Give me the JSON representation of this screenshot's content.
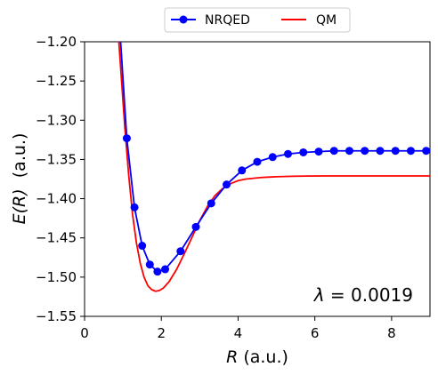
{
  "chart_data": {
    "type": "line",
    "xlabel_var": "R",
    "xlabel_unit": " (a.u.)",
    "ylabel_var": "E(R)",
    "ylabel_unit": "  (a.u.)",
    "xlim": [
      0,
      9
    ],
    "ylim": [
      -1.55,
      -1.2
    ],
    "xticks": [
      0,
      2,
      4,
      6,
      8
    ],
    "xtick_labels": [
      "0",
      "2",
      "4",
      "6",
      "8"
    ],
    "yticks": [
      -1.55,
      -1.5,
      -1.45,
      -1.4,
      -1.35,
      -1.3,
      -1.25,
      -1.2
    ],
    "ytick_labels": [
      "−1.55",
      "−1.50",
      "−1.45",
      "−1.40",
      "−1.35",
      "−1.30",
      "−1.25",
      "−1.20"
    ],
    "legend_placement": "top-center, outside plot",
    "annotation": {
      "lambda_symbol": "λ",
      "text": " = 0.0019",
      "position": "bottom-right"
    },
    "series": [
      {
        "name": "NRQED",
        "color": "#0000ff",
        "marker": "circle",
        "x": [
          0.9,
          1.1,
          1.3,
          1.5,
          1.7,
          1.9,
          2.1,
          2.5,
          2.9,
          3.3,
          3.7,
          4.1,
          4.5,
          4.9,
          5.3,
          5.7,
          6.1,
          6.5,
          6.9,
          7.3,
          7.7,
          8.1,
          8.5,
          8.9
        ],
        "y": [
          -1.17,
          -1.323,
          -1.411,
          -1.46,
          -1.484,
          -1.493,
          -1.49,
          -1.467,
          -1.436,
          -1.406,
          -1.382,
          -1.364,
          -1.353,
          -1.347,
          -1.343,
          -1.341,
          -1.34,
          -1.339,
          -1.339,
          -1.339,
          -1.339,
          -1.339,
          -1.339,
          -1.339
        ],
        "marker_x": [
          1.1,
          1.3,
          1.5,
          1.7,
          1.9,
          2.1,
          2.5,
          2.9,
          3.3,
          3.7,
          4.1,
          4.5,
          4.9,
          5.3,
          5.7,
          6.1,
          6.5,
          6.9,
          7.3,
          7.7,
          8.1,
          8.5,
          8.9
        ],
        "marker_y": [
          -1.323,
          -1.411,
          -1.46,
          -1.484,
          -1.493,
          -1.49,
          -1.467,
          -1.436,
          -1.406,
          -1.382,
          -1.364,
          -1.353,
          -1.347,
          -1.343,
          -1.341,
          -1.34,
          -1.339,
          -1.339,
          -1.339,
          -1.339,
          -1.339,
          -1.339,
          -1.339
        ]
      },
      {
        "name": "QM",
        "color": "#ff0000",
        "marker": "none",
        "x": [
          0.85,
          0.95,
          1.05,
          1.15,
          1.25,
          1.35,
          1.45,
          1.55,
          1.65,
          1.75,
          1.85,
          1.95,
          2.05,
          2.2,
          2.4,
          2.6,
          2.8,
          3.0,
          3.2,
          3.4,
          3.6,
          3.8,
          4.0,
          4.2,
          4.4,
          4.6,
          4.8,
          5.0,
          5.4,
          5.8,
          6.2,
          7.0,
          8.0,
          9.0
        ],
        "y": [
          -1.17,
          -1.24,
          -1.31,
          -1.37,
          -1.42,
          -1.456,
          -1.482,
          -1.5,
          -1.511,
          -1.516,
          -1.518,
          -1.517,
          -1.514,
          -1.506,
          -1.49,
          -1.47,
          -1.449,
          -1.428,
          -1.41,
          -1.396,
          -1.387,
          -1.381,
          -1.377,
          -1.375,
          -1.374,
          -1.373,
          -1.3725,
          -1.372,
          -1.3715,
          -1.3712,
          -1.371,
          -1.371,
          -1.371,
          -1.371
        ]
      }
    ]
  }
}
